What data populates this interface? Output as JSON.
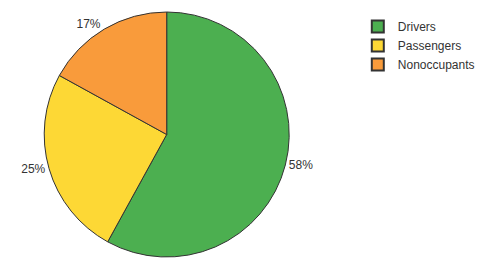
{
  "chart_data": {
    "type": "pie",
    "categories": [
      "Drivers",
      "Passengers",
      "Nonoccupants"
    ],
    "values": [
      58,
      25,
      17
    ],
    "value_labels": [
      "58%",
      "25%",
      "17%"
    ],
    "colors": [
      "#4caf50",
      "#fdd835",
      "#f99b3b"
    ],
    "data_labels": true,
    "legend": "top right"
  }
}
